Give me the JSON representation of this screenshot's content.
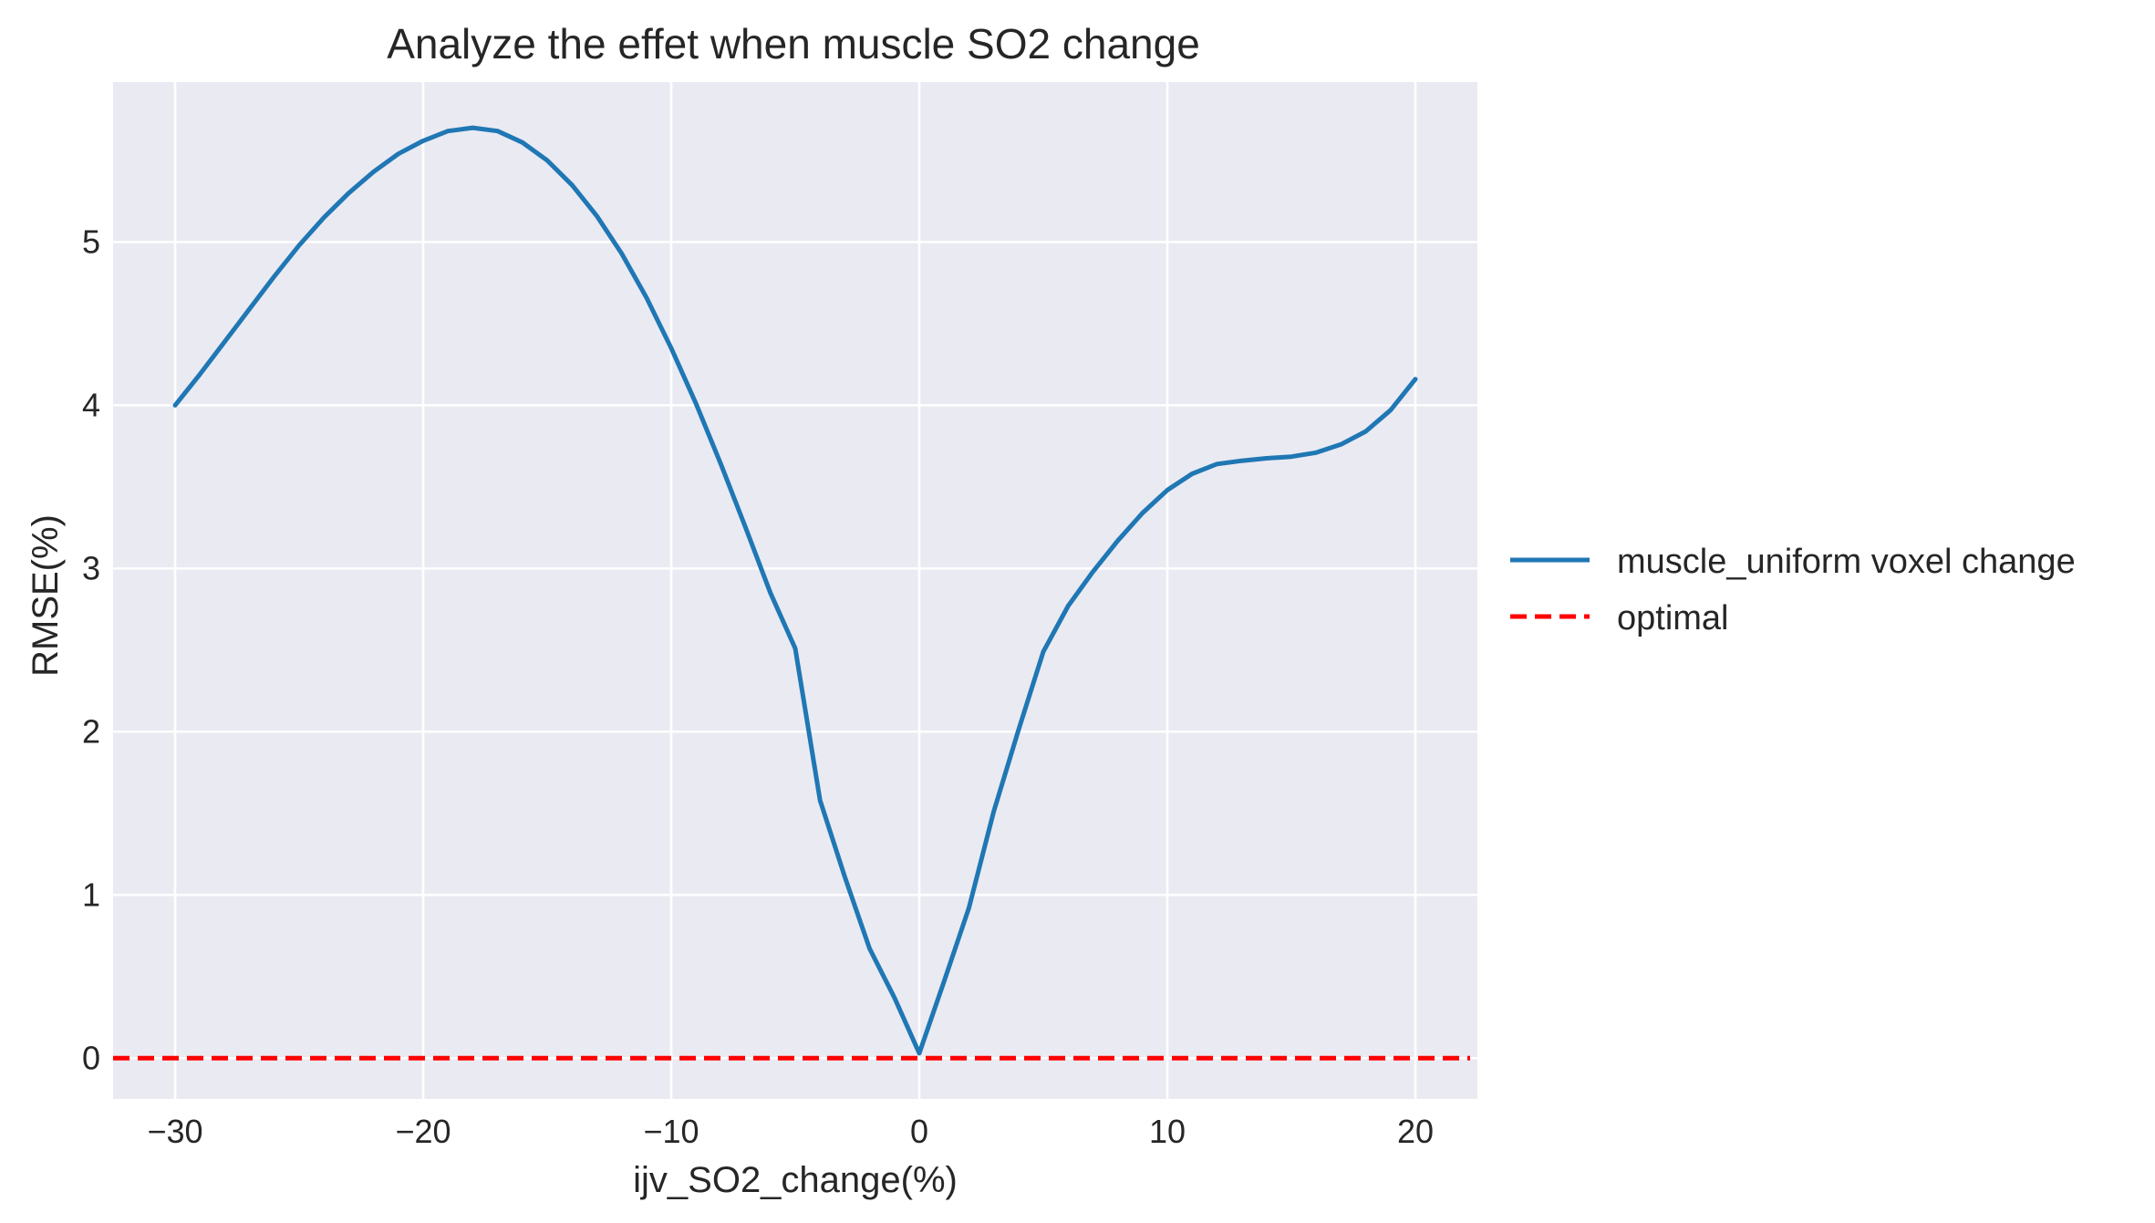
{
  "chart_data": {
    "type": "line",
    "title": "Analyze the effet when muscle SO2 change",
    "xlabel": "ijv_SO2_change(%)",
    "ylabel": "RMSE(%)",
    "xlim": [
      -32.5,
      22.5
    ],
    "ylim": [
      -0.25,
      5.98
    ],
    "xticks": [
      -30,
      -20,
      -10,
      0,
      10,
      20
    ],
    "xtick_labels": [
      "−30",
      "−20",
      "−10",
      "0",
      "10",
      "20"
    ],
    "yticks": [
      0,
      1,
      2,
      3,
      4,
      5
    ],
    "ytick_labels": [
      "0",
      "1",
      "2",
      "3",
      "4",
      "5"
    ],
    "grid": true,
    "legend_position": "right-outside",
    "series": [
      {
        "name": "muscle_uniform voxel change",
        "color": "#1f77b4",
        "style": "solid",
        "x": [
          -30,
          -29,
          -28,
          -27,
          -26,
          -25,
          -24,
          -23,
          -22,
          -21,
          -20,
          -19,
          -18,
          -17,
          -16,
          -15,
          -14,
          -13,
          -12,
          -11,
          -10,
          -9,
          -8,
          -7,
          -6,
          -5,
          -4,
          -3,
          -2,
          -1,
          0,
          1,
          2,
          3,
          4,
          5,
          6,
          7,
          8,
          9,
          10,
          11,
          12,
          13,
          14,
          15,
          16,
          17,
          18,
          19,
          20
        ],
        "y": [
          4.0,
          4.19,
          4.39,
          4.59,
          4.79,
          4.98,
          5.15,
          5.3,
          5.43,
          5.54,
          5.62,
          5.68,
          5.7,
          5.68,
          5.61,
          5.5,
          5.35,
          5.16,
          4.93,
          4.66,
          4.35,
          4.01,
          3.64,
          3.25,
          2.85,
          2.51,
          1.58,
          1.11,
          0.67,
          0.37,
          0.03,
          0.47,
          0.92,
          1.51,
          2.01,
          2.49,
          2.77,
          2.98,
          3.17,
          3.34,
          3.48,
          3.58,
          3.64,
          3.66,
          3.675,
          3.685,
          3.71,
          3.76,
          3.84,
          3.97,
          4.16
        ]
      },
      {
        "name": "optimal",
        "color": "#ff0000",
        "style": "dashed",
        "y_constant": 0
      }
    ]
  }
}
